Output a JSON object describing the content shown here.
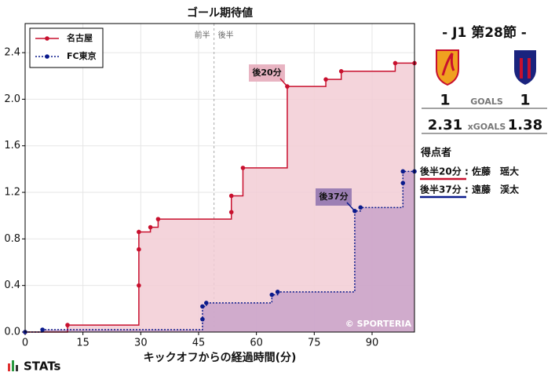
{
  "chart_data": {
    "type": "step",
    "title": "ゴール期待値",
    "x_label": "キックオフからの経過時間(分)",
    "xlim": [
      0,
      101
    ],
    "ylim": [
      0,
      2.65
    ],
    "xticks": [
      0,
      15,
      30,
      45,
      60,
      75,
      90
    ],
    "yticks": [
      {
        "value": 0,
        "label": "0.0"
      },
      0.4,
      0.8,
      1.2,
      1.6,
      {
        "value": 2,
        "label": "2.0"
      },
      2.4
    ],
    "grid": true,
    "legend": "upper left",
    "halftime_x": 49,
    "first_half_label": "前半",
    "second_half_label": "後半",
    "series": [
      {
        "name": "名古屋",
        "color": "#c8102e",
        "fill": "#f2cdd5",
        "x": [
          0,
          11,
          29.5,
          29.5,
          29.5,
          32.5,
          34.5,
          53.5,
          53.5,
          56.5,
          68,
          78,
          82,
          96,
          101
        ],
        "values": [
          0,
          0.06,
          0.4,
          0.71,
          0.86,
          0.9,
          0.97,
          1.03,
          1.17,
          1.41,
          2.11,
          2.17,
          2.24,
          2.31,
          2.31
        ]
      },
      {
        "name": "FC東京",
        "color": "#0a1a8c",
        "fill": "#c9a3c9",
        "x": [
          0,
          4.5,
          46,
          46,
          47,
          64,
          65.5,
          85.5,
          87,
          98,
          98,
          101
        ],
        "values": [
          0,
          0.02,
          0.11,
          0.22,
          0.25,
          0.32,
          0.345,
          1.04,
          1.07,
          1.28,
          1.38,
          1.38
        ]
      }
    ],
    "annotations": [
      "後20分",
      "後37分"
    ],
    "credit": "© SPORTERIA"
  },
  "match": {
    "round": "- J1 第28節 -",
    "goals_label": "GOALS",
    "xgoals_label": "xGOALS",
    "home_goals": "1",
    "away_goals": "1",
    "home_xg": "2.31",
    "away_xg": "1.38",
    "scorers_title": "得点者",
    "scorers": [
      {
        "time": "後半20分",
        "name": ": 佐藤　瑶大"
      },
      {
        "time": "後半37分",
        "name": ": 遠藤　渓太"
      }
    ]
  },
  "brand": "STATs"
}
